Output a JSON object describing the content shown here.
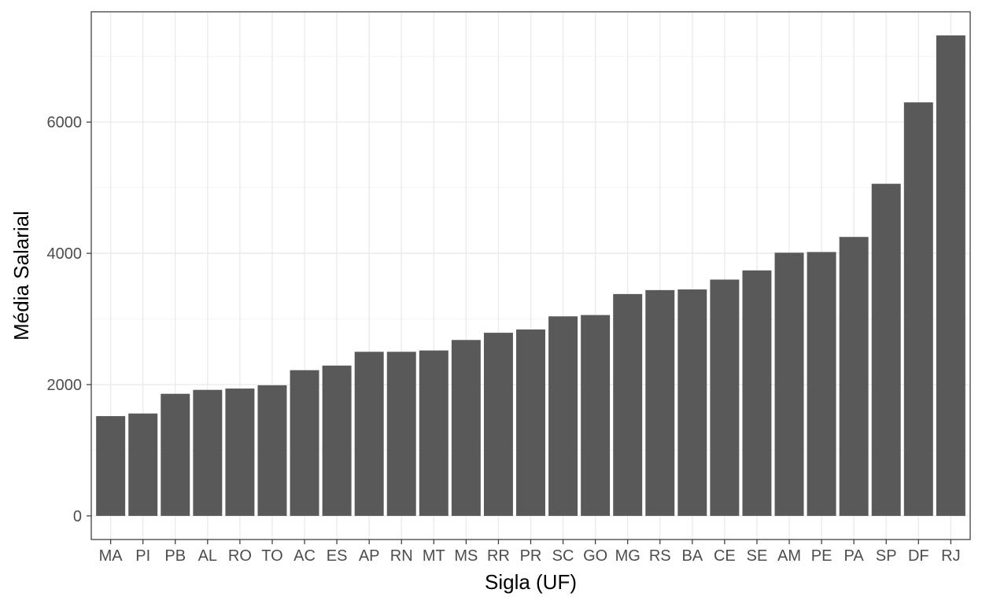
{
  "chart_data": {
    "type": "bar",
    "title": "",
    "xlabel": "Sigla (UF)",
    "ylabel": "Média Salarial",
    "categories": [
      "MA",
      "PI",
      "PB",
      "AL",
      "RO",
      "TO",
      "AC",
      "ES",
      "AP",
      "RN",
      "MT",
      "MS",
      "RR",
      "PR",
      "SC",
      "GO",
      "MG",
      "RS",
      "BA",
      "CE",
      "SE",
      "AM",
      "PE",
      "PA",
      "SP",
      "DF",
      "RJ"
    ],
    "values": [
      1520,
      1560,
      1860,
      1920,
      1940,
      1990,
      2220,
      2290,
      2500,
      2500,
      2520,
      2680,
      2790,
      2840,
      3040,
      3060,
      3380,
      3440,
      3450,
      3600,
      3740,
      4010,
      4020,
      4250,
      5060,
      6300,
      7320
    ],
    "yticks": [
      0,
      2000,
      4000,
      6000
    ],
    "ylim": [
      -360,
      7680
    ],
    "grid": true,
    "legend": "none",
    "colors": {
      "bar": "#595959",
      "panel_border": "#333333",
      "grid_major": "#ebebeb",
      "grid_minor": "#f4f4f4",
      "tick": "#333333"
    }
  }
}
